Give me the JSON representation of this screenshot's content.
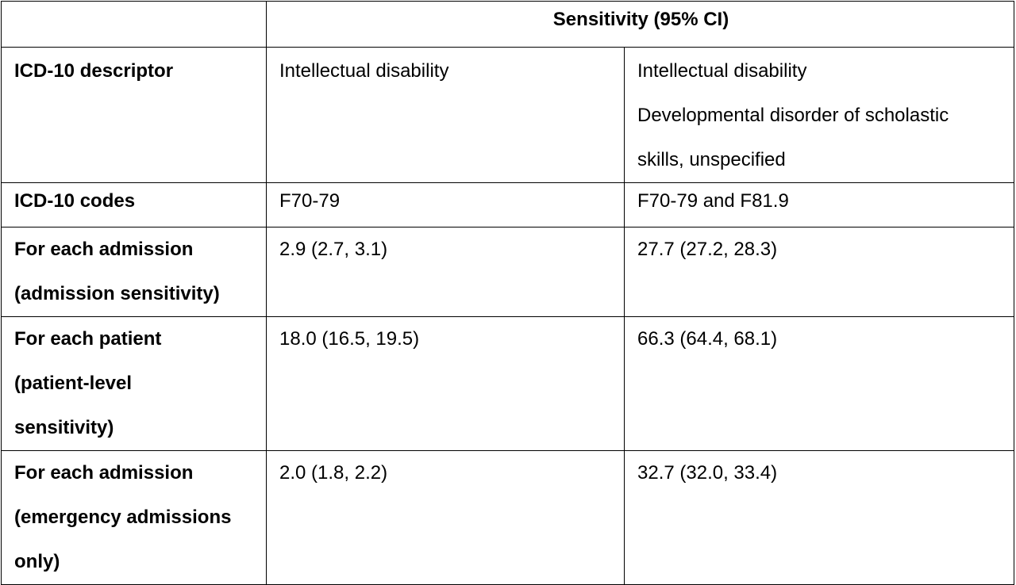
{
  "table": {
    "header": {
      "corner": "",
      "span_label": "Sensitivity (95% CI)"
    },
    "rows": [
      {
        "label_lines": [
          "ICD-10 descriptor"
        ],
        "col1_lines": [
          "Intellectual disability"
        ],
        "col2_lines": [
          "Intellectual disability",
          "Developmental disorder of scholastic",
          "skills, unspecified"
        ]
      },
      {
        "label_lines": [
          "ICD-10 codes"
        ],
        "col1_lines": [
          "F70-79"
        ],
        "col2_lines": [
          "F70-79 and F81.9"
        ]
      },
      {
        "label_lines": [
          "For each admission",
          "(admission sensitivity)"
        ],
        "col1_lines": [
          "2.9 (2.7, 3.1)"
        ],
        "col2_lines": [
          "27.7 (27.2, 28.3)"
        ]
      },
      {
        "label_lines": [
          "For each patient",
          "(patient-level",
          "sensitivity)"
        ],
        "col1_lines": [
          "18.0 (16.5, 19.5)"
        ],
        "col2_lines": [
          "66.3 (64.4, 68.1)"
        ]
      },
      {
        "label_lines": [
          "For each admission",
          "(emergency admissions",
          "only)"
        ],
        "col1_lines": [
          "2.0 (1.8, 2.2)"
        ],
        "col2_lines": [
          "32.7 (32.0, 33.4)"
        ]
      }
    ]
  }
}
